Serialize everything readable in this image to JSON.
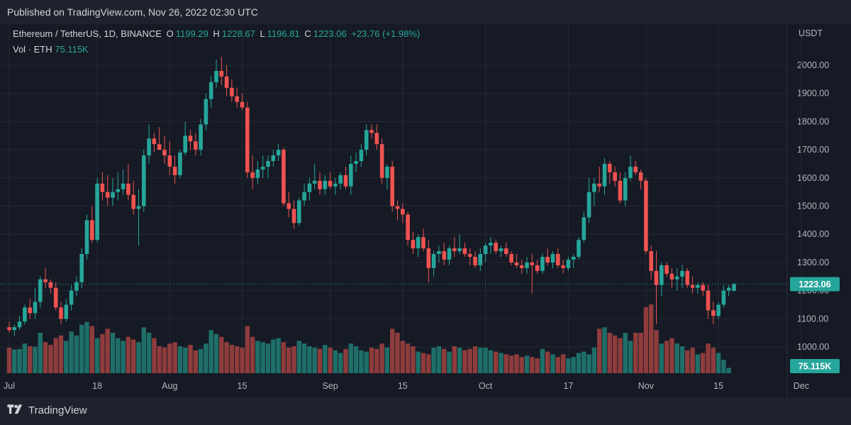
{
  "header": {
    "published": "Published on TradingView.com, Nov 26, 2022 02:30 UTC"
  },
  "legend": {
    "symbol": "Ethereum / TetherUS, 1D, BINANCE",
    "o_label": "O",
    "o_value": "1199.29",
    "h_label": "H",
    "h_value": "1228.67",
    "l_label": "L",
    "l_value": "1196.81",
    "c_label": "C",
    "c_value": "1223.06",
    "change": "+23.76 (+1.98%)",
    "vol_label": "Vol · ETH",
    "vol_value": "75.115K"
  },
  "footer": {
    "brand": "TradingView"
  },
  "colors": {
    "up": "#26a69a",
    "down": "#ef5350",
    "up_vol": "#1f6f69",
    "down_vol": "#8e3c3c",
    "bg": "#161a25",
    "grid": "#242833"
  },
  "chart_data": {
    "type": "candlestick",
    "currency": "USDT",
    "y_ticks": [
      1000,
      1100,
      1200,
      1300,
      1400,
      1500,
      1600,
      1700,
      1800,
      1900,
      2000
    ],
    "y_tick_labels": [
      "1000.00",
      "1100.00",
      "1200.00",
      "1300.00",
      "1400.00",
      "1500.00",
      "1600.00",
      "1700.00",
      "1800.00",
      "1900.00",
      "2000.00"
    ],
    "ylim": [
      923,
      2035
    ],
    "last_price": "1223.06",
    "last_value": 1223.06,
    "last_volume": "75.115K",
    "x_labels": [
      {
        "index": 0,
        "label": "Jul"
      },
      {
        "index": 17,
        "label": "18"
      },
      {
        "index": 31,
        "label": "Aug"
      },
      {
        "index": 45,
        "label": "15"
      },
      {
        "index": 62,
        "label": "Sep"
      },
      {
        "index": 76,
        "label": "15"
      },
      {
        "index": 92,
        "label": "Oct"
      },
      {
        "index": 108,
        "label": "17"
      },
      {
        "index": 123,
        "label": "Nov"
      },
      {
        "index": 137,
        "label": "15"
      },
      {
        "index": 153,
        "label": "Dec"
      }
    ],
    "candles": [
      [
        1070,
        1090,
        1050,
        1060
      ],
      [
        1060,
        1080,
        1040,
        1070
      ],
      [
        1070,
        1110,
        1060,
        1090
      ],
      [
        1090,
        1150,
        1080,
        1140
      ],
      [
        1140,
        1170,
        1100,
        1120
      ],
      [
        1120,
        1210,
        1100,
        1160
      ],
      [
        1160,
        1250,
        1140,
        1240
      ],
      [
        1240,
        1280,
        1210,
        1230
      ],
      [
        1230,
        1240,
        1190,
        1210
      ],
      [
        1210,
        1230,
        1130,
        1140
      ],
      [
        1140,
        1160,
        1080,
        1100
      ],
      [
        1100,
        1170,
        1090,
        1150
      ],
      [
        1150,
        1220,
        1130,
        1200
      ],
      [
        1200,
        1250,
        1180,
        1230
      ],
      [
        1230,
        1350,
        1210,
        1330
      ],
      [
        1330,
        1470,
        1310,
        1450
      ],
      [
        1450,
        1500,
        1370,
        1380
      ],
      [
        1380,
        1600,
        1370,
        1580
      ],
      [
        1580,
        1620,
        1520,
        1550
      ],
      [
        1550,
        1610,
        1500,
        1530
      ],
      [
        1530,
        1600,
        1500,
        1550
      ],
      [
        1550,
        1620,
        1520,
        1560
      ],
      [
        1560,
        1630,
        1540,
        1580
      ],
      [
        1580,
        1650,
        1520,
        1540
      ],
      [
        1540,
        1590,
        1470,
        1490
      ],
      [
        1490,
        1560,
        1360,
        1500
      ],
      [
        1500,
        1700,
        1480,
        1680
      ],
      [
        1680,
        1790,
        1650,
        1740
      ],
      [
        1740,
        1760,
        1690,
        1720
      ],
      [
        1720,
        1780,
        1700,
        1700
      ],
      [
        1700,
        1750,
        1650,
        1680
      ],
      [
        1680,
        1730,
        1610,
        1640
      ],
      [
        1640,
        1680,
        1580,
        1610
      ],
      [
        1610,
        1700,
        1600,
        1690
      ],
      [
        1690,
        1800,
        1680,
        1750
      ],
      [
        1750,
        1770,
        1700,
        1730
      ],
      [
        1730,
        1760,
        1680,
        1700
      ],
      [
        1700,
        1810,
        1680,
        1790
      ],
      [
        1790,
        1900,
        1770,
        1880
      ],
      [
        1880,
        1960,
        1850,
        1940
      ],
      [
        1940,
        2020,
        1920,
        1980
      ],
      [
        1980,
        2030,
        1930,
        1960
      ],
      [
        1960,
        2000,
        1890,
        1920
      ],
      [
        1920,
        1950,
        1870,
        1890
      ],
      [
        1890,
        1920,
        1850,
        1870
      ],
      [
        1870,
        1900,
        1840,
        1850
      ],
      [
        1850,
        1870,
        1600,
        1620
      ],
      [
        1620,
        1680,
        1560,
        1600
      ],
      [
        1600,
        1660,
        1580,
        1630
      ],
      [
        1630,
        1680,
        1600,
        1640
      ],
      [
        1640,
        1680,
        1600,
        1660
      ],
      [
        1660,
        1700,
        1640,
        1680
      ],
      [
        1680,
        1720,
        1660,
        1700
      ],
      [
        1700,
        1710,
        1500,
        1510
      ],
      [
        1510,
        1550,
        1460,
        1490
      ],
      [
        1490,
        1520,
        1420,
        1440
      ],
      [
        1440,
        1530,
        1430,
        1520
      ],
      [
        1520,
        1580,
        1500,
        1550
      ],
      [
        1550,
        1600,
        1520,
        1580
      ],
      [
        1580,
        1650,
        1560,
        1590
      ],
      [
        1590,
        1620,
        1540,
        1560
      ],
      [
        1560,
        1610,
        1540,
        1590
      ],
      [
        1590,
        1620,
        1560,
        1570
      ],
      [
        1570,
        1600,
        1540,
        1580
      ],
      [
        1580,
        1620,
        1560,
        1610
      ],
      [
        1610,
        1640,
        1560,
        1570
      ],
      [
        1570,
        1680,
        1540,
        1650
      ],
      [
        1650,
        1690,
        1620,
        1660
      ],
      [
        1660,
        1720,
        1640,
        1700
      ],
      [
        1700,
        1790,
        1680,
        1770
      ],
      [
        1770,
        1790,
        1740,
        1760
      ],
      [
        1760,
        1790,
        1700,
        1720
      ],
      [
        1720,
        1740,
        1580,
        1600
      ],
      [
        1600,
        1650,
        1560,
        1640
      ],
      [
        1640,
        1660,
        1480,
        1500
      ],
      [
        1500,
        1520,
        1450,
        1490
      ],
      [
        1490,
        1510,
        1440,
        1470
      ],
      [
        1470,
        1480,
        1360,
        1380
      ],
      [
        1380,
        1410,
        1330,
        1350
      ],
      [
        1350,
        1400,
        1320,
        1390
      ],
      [
        1390,
        1420,
        1340,
        1350
      ],
      [
        1350,
        1380,
        1230,
        1280
      ],
      [
        1280,
        1340,
        1250,
        1330
      ],
      [
        1330,
        1360,
        1300,
        1340
      ],
      [
        1340,
        1370,
        1290,
        1310
      ],
      [
        1310,
        1360,
        1290,
        1350
      ],
      [
        1350,
        1390,
        1320,
        1340
      ],
      [
        1340,
        1400,
        1330,
        1350
      ],
      [
        1350,
        1370,
        1320,
        1330
      ],
      [
        1330,
        1350,
        1290,
        1320
      ],
      [
        1320,
        1340,
        1280,
        1290
      ],
      [
        1290,
        1350,
        1270,
        1330
      ],
      [
        1330,
        1370,
        1300,
        1360
      ],
      [
        1360,
        1390,
        1330,
        1370
      ],
      [
        1370,
        1380,
        1330,
        1340
      ],
      [
        1340,
        1360,
        1320,
        1350
      ],
      [
        1350,
        1370,
        1320,
        1330
      ],
      [
        1330,
        1340,
        1290,
        1300
      ],
      [
        1300,
        1330,
        1280,
        1290
      ],
      [
        1290,
        1310,
        1260,
        1280
      ],
      [
        1280,
        1320,
        1260,
        1300
      ],
      [
        1300,
        1330,
        1190,
        1290
      ],
      [
        1290,
        1310,
        1260,
        1270
      ],
      [
        1270,
        1330,
        1260,
        1320
      ],
      [
        1320,
        1350,
        1290,
        1300
      ],
      [
        1300,
        1340,
        1280,
        1330
      ],
      [
        1330,
        1350,
        1280,
        1290
      ],
      [
        1290,
        1310,
        1260,
        1280
      ],
      [
        1280,
        1320,
        1270,
        1310
      ],
      [
        1310,
        1330,
        1280,
        1320
      ],
      [
        1320,
        1390,
        1310,
        1380
      ],
      [
        1380,
        1480,
        1370,
        1460
      ],
      [
        1460,
        1600,
        1440,
        1550
      ],
      [
        1550,
        1600,
        1500,
        1580
      ],
      [
        1580,
        1640,
        1550,
        1570
      ],
      [
        1570,
        1670,
        1540,
        1650
      ],
      [
        1650,
        1660,
        1580,
        1620
      ],
      [
        1620,
        1640,
        1570,
        1590
      ],
      [
        1590,
        1620,
        1510,
        1520
      ],
      [
        1520,
        1620,
        1500,
        1600
      ],
      [
        1600,
        1680,
        1590,
        1640
      ],
      [
        1640,
        1660,
        1610,
        1620
      ],
      [
        1620,
        1630,
        1560,
        1590
      ],
      [
        1590,
        1600,
        1330,
        1340
      ],
      [
        1340,
        1360,
        1240,
        1270
      ],
      [
        1270,
        1340,
        1080,
        1220
      ],
      [
        1220,
        1300,
        1180,
        1290
      ],
      [
        1290,
        1300,
        1250,
        1260
      ],
      [
        1260,
        1280,
        1210,
        1240
      ],
      [
        1240,
        1280,
        1200,
        1250
      ],
      [
        1250,
        1290,
        1210,
        1270
      ],
      [
        1270,
        1280,
        1210,
        1220
      ],
      [
        1220,
        1250,
        1190,
        1210
      ],
      [
        1210,
        1230,
        1190,
        1220
      ],
      [
        1220,
        1230,
        1180,
        1200
      ],
      [
        1200,
        1220,
        1100,
        1130
      ],
      [
        1130,
        1160,
        1080,
        1110
      ],
      [
        1110,
        1160,
        1100,
        1150
      ],
      [
        1150,
        1220,
        1140,
        1200
      ],
      [
        1200,
        1220,
        1180,
        1210
      ],
      [
        1199.29,
        1228.67,
        1196.81,
        1223.06
      ]
    ],
    "volumes": [
      95,
      88,
      90,
      110,
      100,
      98,
      150,
      115,
      105,
      130,
      140,
      120,
      155,
      140,
      180,
      190,
      175,
      130,
      145,
      165,
      150,
      130,
      120,
      135,
      125,
      115,
      170,
      150,
      130,
      100,
      95,
      110,
      115,
      100,
      95,
      105,
      85,
      90,
      110,
      160,
      145,
      135,
      115,
      105,
      100,
      95,
      175,
      135,
      120,
      115,
      110,
      125,
      130,
      115,
      95,
      100,
      120,
      110,
      100,
      95,
      90,
      105,
      95,
      85,
      75,
      90,
      110,
      100,
      85,
      80,
      95,
      90,
      110,
      95,
      165,
      150,
      120,
      110,
      100,
      80,
      75,
      70,
      95,
      100,
      90,
      80,
      100,
      95,
      85,
      90,
      100,
      95,
      95,
      85,
      80,
      75,
      70,
      65,
      70,
      60,
      65,
      60,
      55,
      90,
      80,
      70,
      60,
      70,
      55,
      60,
      75,
      80,
      70,
      95,
      165,
      170,
      150,
      140,
      130,
      150,
      120,
      150,
      150,
      245,
      255,
      160,
      110,
      120,
      130,
      110,
      100,
      85,
      95,
      70,
      75,
      110,
      95,
      75,
      50,
      20
    ]
  }
}
